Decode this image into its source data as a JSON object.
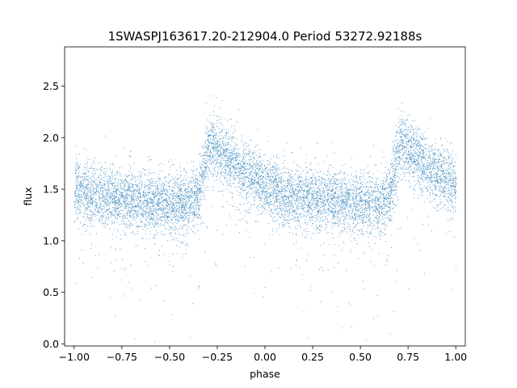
{
  "chart_data": {
    "type": "scatter",
    "title": "1SWASPJ163617.20-212904.0 Period 53272.92188s",
    "xlabel": "phase",
    "ylabel": "flux",
    "xlim": [
      -1.05,
      1.05
    ],
    "ylim": [
      -0.02,
      2.88
    ],
    "xticks": [
      -1.0,
      -0.75,
      -0.5,
      -0.25,
      0.0,
      0.25,
      0.5,
      0.75,
      1.0
    ],
    "xtick_labels": [
      "−1.00",
      "−0.75",
      "−0.50",
      "−0.25",
      "0.00",
      "0.25",
      "0.50",
      "0.75",
      "1.00"
    ],
    "yticks": [
      0.0,
      0.5,
      1.0,
      1.5,
      2.0,
      2.5
    ],
    "ytick_labels": [
      "0.0",
      "0.5",
      "1.0",
      "1.5",
      "2.0",
      "2.5"
    ],
    "grid": false,
    "marker_color": "#1f77b4",
    "light_curve_profile": {
      "x": [
        -1.0,
        -0.9,
        -0.8,
        -0.7,
        -0.6,
        -0.5,
        -0.4,
        -0.35,
        -0.3,
        -0.28,
        -0.25,
        -0.2,
        -0.1,
        0.0,
        0.1,
        0.2,
        0.3,
        0.4,
        0.5,
        0.6,
        0.65,
        0.7,
        0.72,
        0.75,
        0.8,
        0.9,
        1.0
      ],
      "y": [
        1.5,
        1.45,
        1.42,
        1.4,
        1.38,
        1.36,
        1.35,
        1.45,
        1.9,
        1.97,
        1.9,
        1.8,
        1.65,
        1.55,
        1.45,
        1.42,
        1.4,
        1.38,
        1.36,
        1.35,
        1.45,
        1.9,
        1.97,
        1.9,
        1.8,
        1.65,
        1.55
      ]
    },
    "scatter_sigma": 0.15
  }
}
